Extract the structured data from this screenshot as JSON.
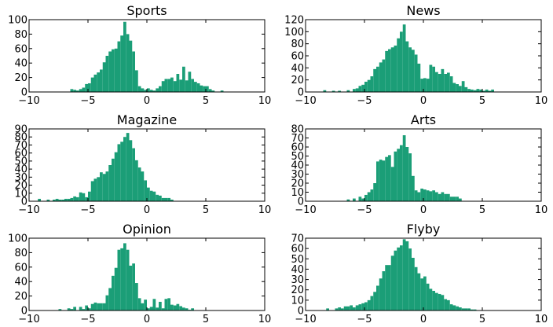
{
  "figure": {
    "background": "#ffffff",
    "bar_color": "#1b9e77"
  },
  "chart_data": [
    {
      "type": "bar",
      "title": "Sports",
      "xlabel": "",
      "ylabel": "",
      "xlim": [
        -10,
        10
      ],
      "ylim": [
        0,
        100
      ],
      "xticks": [
        -10,
        -5,
        0,
        5,
        10
      ],
      "yticks": [
        0,
        20,
        40,
        60,
        80,
        100
      ],
      "bin_width": 0.25,
      "series": [
        {
          "x": [
            -6.5,
            -6.25,
            -6,
            -5.75,
            -5.5,
            -5.25,
            -5,
            -4.75,
            -4.5,
            -4.25,
            -4,
            -3.75,
            -3.5,
            -3.25,
            -3,
            -2.75,
            -2.5,
            -2.25,
            -2,
            -1.75,
            -1.5,
            -1.25,
            -1,
            -0.75,
            -0.5,
            -0.25,
            0,
            0.25,
            0.5,
            0.75,
            1,
            1.25,
            1.5,
            1.75,
            2,
            2.25,
            2.5,
            2.75,
            3,
            3.25,
            3.5,
            3.75,
            4,
            4.25,
            4.5,
            4.75,
            5,
            5.25,
            5.5,
            6.25
          ],
          "values": [
            4,
            3,
            2,
            4,
            6,
            11,
            12,
            20,
            24,
            27,
            31,
            41,
            50,
            56,
            59,
            60,
            70,
            78,
            97,
            80,
            71,
            56,
            30,
            8,
            5,
            3,
            5,
            3,
            2,
            5,
            8,
            15,
            18,
            18,
            20,
            15,
            25,
            17,
            35,
            16,
            28,
            18,
            14,
            12,
            9,
            8,
            8,
            4,
            2,
            2
          ]
        }
      ]
    },
    {
      "type": "bar",
      "title": "News",
      "xlabel": "",
      "ylabel": "",
      "xlim": [
        -10,
        10
      ],
      "ylim": [
        0,
        120
      ],
      "xticks": [
        -10,
        -5,
        0,
        5,
        10
      ],
      "yticks": [
        0,
        20,
        40,
        60,
        80,
        100,
        120
      ],
      "bin_width": 0.25,
      "series": [
        {
          "x": [
            -8.5,
            -7.75,
            -7.25,
            -6.5,
            -6,
            -5.75,
            -5.5,
            -5.25,
            -5,
            -4.75,
            -4.5,
            -4.25,
            -4,
            -3.75,
            -3.5,
            -3.25,
            -3,
            -2.75,
            -2.5,
            -2.25,
            -2,
            -1.75,
            -1.5,
            -1.25,
            -1,
            -0.75,
            -0.5,
            -0.25,
            0,
            0.25,
            0.5,
            0.75,
            1,
            1.25,
            1.5,
            1.75,
            2,
            2.25,
            2.5,
            2.75,
            3,
            3.25,
            3.5,
            3.75,
            4,
            4.25,
            4.5,
            4.75,
            5,
            5.25,
            5.5,
            5.75
          ],
          "values": [
            3,
            2,
            2,
            3,
            5,
            6,
            10,
            12,
            17,
            20,
            26,
            38,
            42,
            49,
            54,
            68,
            71,
            74,
            77,
            89,
            100,
            112,
            84,
            74,
            70,
            62,
            47,
            22,
            23,
            22,
            45,
            42,
            33,
            30,
            38,
            30,
            32,
            26,
            15,
            13,
            10,
            18,
            8,
            5,
            4,
            3,
            5,
            4,
            2,
            4,
            2,
            4
          ]
        }
      ]
    },
    {
      "type": "bar",
      "title": "Magazine",
      "xlabel": "",
      "ylabel": "",
      "xlim": [
        -10,
        10
      ],
      "ylim": [
        0,
        90
      ],
      "xticks": [
        -10,
        -5,
        0,
        5,
        10
      ],
      "yticks": [
        0,
        10,
        20,
        30,
        40,
        50,
        60,
        70,
        80,
        90
      ],
      "bin_width": 0.25,
      "series": [
        {
          "x": [
            -9.25,
            -8.5,
            -8,
            -7.75,
            -7.5,
            -7.25,
            -7,
            -6.75,
            -6.5,
            -6.25,
            -6,
            -5.75,
            -5.5,
            -5.25,
            -5,
            -4.75,
            -4.5,
            -4.25,
            -4,
            -3.75,
            -3.5,
            -3.25,
            -3,
            -2.75,
            -2.5,
            -2.25,
            -2,
            -1.75,
            -1.5,
            -1.25,
            -1,
            -0.75,
            -0.5,
            -0.25,
            0,
            0.25,
            0.5,
            0.75,
            1,
            1.25,
            1.5,
            1.75,
            2
          ],
          "values": [
            3,
            2,
            2,
            3,
            2,
            2,
            3,
            3,
            4,
            6,
            5,
            11,
            10,
            5,
            12,
            25,
            28,
            30,
            36,
            34,
            37,
            45,
            53,
            61,
            71,
            74,
            80,
            85,
            76,
            66,
            51,
            42,
            37,
            26,
            17,
            13,
            12,
            8,
            7,
            4,
            4,
            4,
            2
          ]
        }
      ]
    },
    {
      "type": "bar",
      "title": "Arts",
      "xlabel": "",
      "ylabel": "",
      "xlim": [
        -10,
        10
      ],
      "ylim": [
        0,
        80
      ],
      "xticks": [
        -10,
        -5,
        0,
        5,
        10
      ],
      "yticks": [
        0,
        10,
        20,
        30,
        40,
        50,
        60,
        70,
        80
      ],
      "bin_width": 0.25,
      "series": [
        {
          "x": [
            -6.5,
            -6,
            -5.5,
            -5.25,
            -5,
            -4.75,
            -4.5,
            -4.25,
            -4,
            -3.75,
            -3.5,
            -3.25,
            -3,
            -2.75,
            -2.5,
            -2.25,
            -2,
            -1.75,
            -1.5,
            -1.25,
            -1,
            -0.75,
            -0.5,
            -0.25,
            0,
            0.25,
            0.5,
            0.75,
            1,
            1.25,
            1.5,
            1.75,
            2,
            2.25,
            2.5,
            2.75,
            3
          ],
          "values": [
            2,
            3,
            5,
            3,
            7,
            10,
            13,
            20,
            44,
            46,
            45,
            49,
            51,
            38,
            55,
            58,
            62,
            73,
            60,
            53,
            28,
            12,
            10,
            14,
            13,
            12,
            11,
            12,
            10,
            8,
            10,
            8,
            8,
            5,
            5,
            5,
            3
          ]
        }
      ]
    },
    {
      "type": "bar",
      "title": "Opinion",
      "xlabel": "",
      "ylabel": "",
      "xlim": [
        -10,
        10
      ],
      "ylim": [
        0,
        100
      ],
      "xticks": [
        -10,
        -5,
        0,
        5,
        10
      ],
      "yticks": [
        0,
        20,
        40,
        60,
        80,
        100
      ],
      "bin_width": 0.25,
      "series": [
        {
          "x": [
            -7.5,
            -6.75,
            -6.5,
            -6.25,
            -5.75,
            -5.5,
            -5.25,
            -5,
            -4.75,
            -4.5,
            -4.25,
            -4,
            -3.75,
            -3.5,
            -3.25,
            -3,
            -2.75,
            -2.5,
            -2.25,
            -2,
            -1.75,
            -1.5,
            -1.25,
            -1,
            -0.75,
            -0.5,
            -0.25,
            0,
            0.25,
            0.5,
            0.75,
            1,
            1.25,
            1.5,
            1.75,
            2,
            2.25,
            2.5,
            2.75,
            3,
            3.25,
            3.5,
            3.75
          ],
          "values": [
            2,
            3,
            2,
            5,
            5,
            2,
            7,
            3,
            9,
            11,
            10,
            10,
            10,
            21,
            31,
            48,
            59,
            84,
            86,
            93,
            84,
            62,
            65,
            38,
            17,
            10,
            15,
            3,
            5,
            16,
            4,
            12,
            3,
            16,
            17,
            8,
            7,
            9,
            6,
            4,
            3,
            1,
            3
          ]
        }
      ]
    },
    {
      "type": "bar",
      "title": "Flyby",
      "xlabel": "",
      "ylabel": "",
      "xlim": [
        -10,
        10
      ],
      "ylim": [
        0,
        70
      ],
      "xticks": [
        -10,
        -5,
        0,
        5,
        10
      ],
      "yticks": [
        0,
        10,
        20,
        30,
        40,
        50,
        60,
        70
      ],
      "bin_width": 0.25,
      "series": [
        {
          "x": [
            -8.25,
            -7.5,
            -7.25,
            -7,
            -6.75,
            -6.5,
            -6.25,
            -6,
            -5.75,
            -5.5,
            -5.25,
            -5,
            -4.75,
            -4.5,
            -4.25,
            -4,
            -3.75,
            -3.5,
            -3.25,
            -3,
            -2.75,
            -2.5,
            -2.25,
            -2,
            -1.75,
            -1.5,
            -1.25,
            -1,
            -0.75,
            -0.5,
            -0.25,
            0,
            0.25,
            0.5,
            0.75,
            1,
            1.25,
            1.5,
            1.75,
            2,
            2.25,
            2.5,
            2.75,
            3,
            3.25,
            3.5,
            3.75,
            4,
            4.25
          ],
          "values": [
            2,
            2,
            3,
            2,
            4,
            4,
            5,
            3,
            5,
            6,
            7,
            8,
            10,
            14,
            18,
            24,
            31,
            38,
            44,
            44,
            53,
            58,
            61,
            63,
            69,
            67,
            60,
            51,
            42,
            36,
            31,
            33,
            26,
            21,
            19,
            17,
            16,
            15,
            11,
            10,
            6,
            5,
            4,
            3,
            2,
            2,
            2,
            1,
            1
          ]
        }
      ]
    }
  ]
}
